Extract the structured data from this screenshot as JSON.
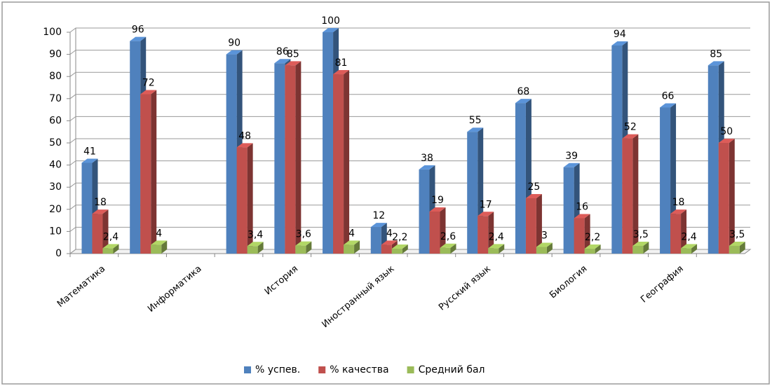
{
  "chart_data": {
    "type": "bar3d",
    "categories": [
      "Математика",
      null,
      "Информатика",
      null,
      "История",
      null,
      "Иностранный язык",
      null,
      "Русский язык",
      null,
      "Биология",
      null,
      "География",
      null
    ],
    "series": [
      {
        "name": "% успев.",
        "color": "#4f81bd",
        "values": [
          41,
          96,
          null,
          90,
          86,
          100,
          12,
          38,
          55,
          68,
          39,
          94,
          66,
          85
        ]
      },
      {
        "name": "% качества",
        "color": "#c0504d",
        "values": [
          18,
          72,
          null,
          48,
          85,
          81,
          4,
          19,
          17,
          25,
          16,
          52,
          18,
          50
        ]
      },
      {
        "name": "Средний бал",
        "color": "#9bbb59",
        "values": [
          2.4,
          4,
          null,
          3.4,
          3.6,
          4,
          2.2,
          2.6,
          2.4,
          3,
          2.2,
          3.5,
          2.4,
          3.5
        ],
        "value_labels": [
          "2,4",
          "4",
          null,
          "3,4",
          "3,6",
          "4",
          "2,2",
          "2,6",
          "2,4",
          "3",
          "2,2",
          "3,5",
          "2,4",
          "3,5"
        ]
      }
    ],
    "ylim": [
      0,
      100
    ],
    "yticks": [
      0,
      10,
      20,
      30,
      40,
      50,
      60,
      70,
      80,
      90,
      100
    ],
    "grid": true,
    "legend": "bottom"
  }
}
